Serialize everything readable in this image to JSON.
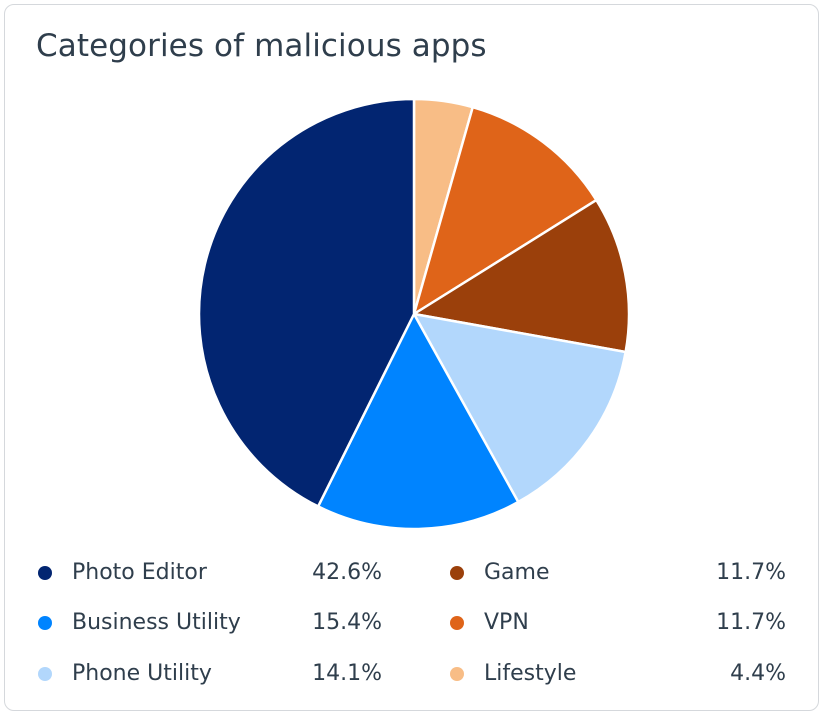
{
  "chart_data": {
    "type": "pie",
    "title": "Categories of malicious apps",
    "slices": [
      {
        "label": "Lifestyle",
        "value": 4.4,
        "display": "4.4%",
        "color": "#f8bd86"
      },
      {
        "label": "VPN",
        "value": 11.7,
        "display": "11.7%",
        "color": "#df6419"
      },
      {
        "label": "Game",
        "value": 11.7,
        "display": "11.7%",
        "color": "#9b400b"
      },
      {
        "label": "Phone Utility",
        "value": 14.1,
        "display": "14.1%",
        "color": "#b2d7fc"
      },
      {
        "label": "Business Utility",
        "value": 15.4,
        "display": "15.4%",
        "color": "#0084ff"
      },
      {
        "label": "Photo Editor",
        "value": 42.6,
        "display": "42.6%",
        "color": "#022571"
      }
    ],
    "legend": {
      "placement": "bottom",
      "columns": [
        [
          "Photo Editor",
          "Business Utility",
          "Phone Utility"
        ],
        [
          "Game",
          "VPN",
          "Lifestyle"
        ]
      ]
    }
  }
}
